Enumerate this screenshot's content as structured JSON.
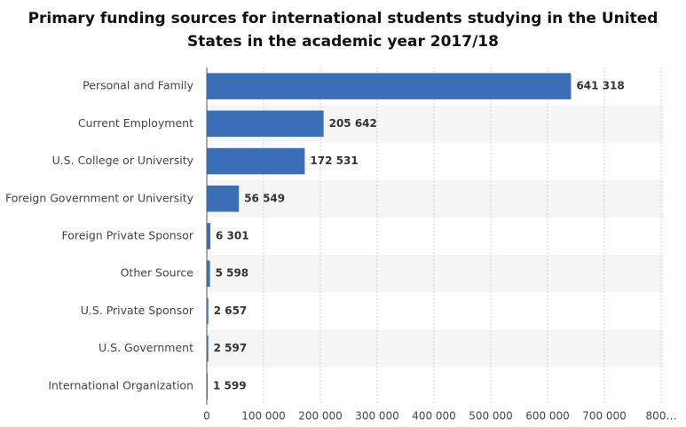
{
  "chart_data": {
    "type": "bar",
    "orientation": "horizontal",
    "title": "Primary funding sources for international students studying in the United States in the academic year 2017/18",
    "categories": [
      "Personal and Family",
      "Current Employment",
      "U.S. College or University",
      "Foreign Government or University",
      "Foreign Private Sponsor",
      "Other Source",
      "U.S. Private Sponsor",
      "U.S. Government",
      "International Organization"
    ],
    "values": [
      641318,
      205642,
      172531,
      56549,
      6301,
      5598,
      2657,
      2597,
      1599
    ],
    "value_labels": [
      "641 318",
      "205 642",
      "172 531",
      "56 549",
      "6 301",
      "5 598",
      "2 657",
      "2 597",
      "1 599"
    ],
    "color": "#3a6fb8",
    "xlim": [
      0,
      800000
    ],
    "xticks": [
      0,
      {
        "value": 100000,
        "label": "100 000"
      },
      {
        "value": 200000,
        "label": "200 000"
      },
      {
        "value": 300000,
        "label": "300 000"
      },
      {
        "value": 400000,
        "label": "400 000"
      },
      {
        "value": 500000,
        "label": "500 000"
      },
      {
        "value": 600000,
        "label": "600 000"
      },
      {
        "value": 700000,
        "label": "700 000"
      },
      {
        "value": 800000,
        "label": "800…"
      }
    ],
    "grid": true
  }
}
